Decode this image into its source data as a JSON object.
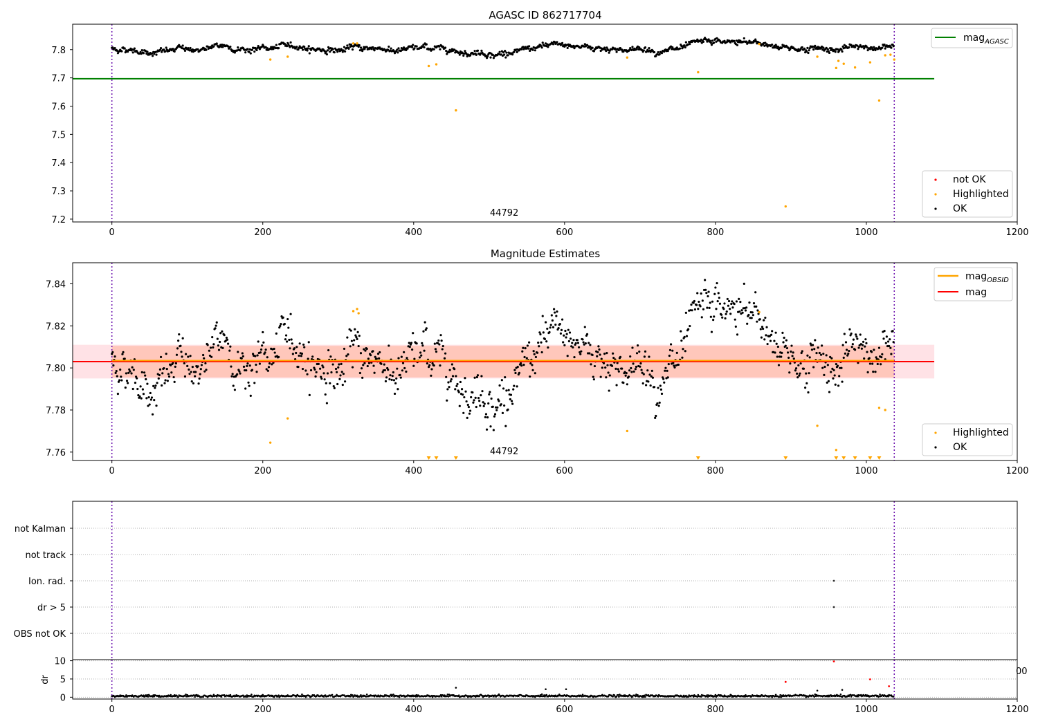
{
  "chart_data": [
    {
      "type": "scatter",
      "title": "AGASC ID 862717704",
      "xlim": [
        -52,
        1200
      ],
      "ylim": [
        7.19,
        7.89
      ],
      "x_ticks": [
        "0",
        "200",
        "400",
        "600",
        "800",
        "1000",
        "1200"
      ],
      "y_ticks": [
        7.2,
        7.3,
        7.4,
        7.5,
        7.6,
        7.7,
        7.8
      ],
      "vlines": [
        0,
        1037
      ],
      "obsid_label": {
        "text": "44792",
        "x": 520
      },
      "hline": {
        "name": "mag_AGASC",
        "value": 7.697,
        "x_range": [
          -52,
          1090
        ],
        "color": "#008000"
      },
      "legend_top": [
        {
          "label_main": "mag",
          "label_sub": "AGASC",
          "color": "#008000"
        }
      ],
      "legend_bottom": [
        {
          "label": "not OK",
          "color": "#ff0000"
        },
        {
          "label": "Highlighted",
          "color": "#ffa500"
        },
        {
          "label": "OK",
          "color": "#000000"
        }
      ],
      "highlighted": {
        "x": [
          210,
          233,
          320,
          325,
          420,
          430,
          456,
          683,
          777,
          858,
          893,
          935,
          960,
          963,
          970,
          985,
          1005,
          1017,
          1025,
          1032,
          1037
        ],
        "y": [
          7.765,
          7.775,
          7.822,
          7.822,
          7.742,
          7.748,
          7.585,
          7.772,
          7.72,
          7.82,
          7.245,
          7.775,
          7.735,
          7.76,
          7.75,
          7.737,
          7.755,
          7.62,
          7.78,
          7.782,
          7.765
        ]
      },
      "ok_series": {
        "n": 1037,
        "mean": 7.803
      }
    },
    {
      "type": "scatter",
      "title": "Magnitude Estimates",
      "xlim": [
        -52,
        1200
      ],
      "ylim": [
        7.756,
        7.85
      ],
      "x_ticks": [
        "0",
        "200",
        "400",
        "600",
        "800",
        "1000",
        "1200"
      ],
      "y_ticks": [
        7.76,
        7.78,
        7.8,
        7.82,
        7.84
      ],
      "vlines": [
        0,
        1037
      ],
      "obsid_label": {
        "text": "44792",
        "x": 520
      },
      "mag_line": {
        "name": "mag",
        "value": 7.803,
        "color": "#ff0000",
        "x_range": [
          -52,
          1090
        ]
      },
      "mag_obsid_line": {
        "name": "mag_OBSID",
        "value": 7.8035,
        "color": "#ffa500",
        "x_range": [
          0,
          1037
        ]
      },
      "bands": [
        {
          "y": [
            7.795,
            7.811
          ],
          "x_range": [
            -52,
            1090
          ],
          "color": "#ffb6c1"
        },
        {
          "y": [
            7.7955,
            7.8105
          ],
          "x_range": [
            0,
            1037
          ],
          "color": "#ffa07a"
        }
      ],
      "legend_top": [
        {
          "label_main": "mag",
          "label_sub": "OBSID",
          "color": "#ffa500"
        },
        {
          "label_main": "mag",
          "label_sub": "",
          "color": "#ff0000"
        }
      ],
      "legend_bottom": [
        {
          "label": "Highlighted",
          "color": "#ffa500"
        },
        {
          "label": "OK",
          "color": "#000000"
        }
      ],
      "highlighted": {
        "x": [
          210,
          233,
          320,
          325,
          327,
          683,
          858,
          935,
          960,
          1017,
          1025
        ],
        "y": [
          7.7645,
          7.776,
          7.827,
          7.828,
          7.826,
          7.77,
          7.8265,
          7.7725,
          7.761,
          7.781,
          7.78
        ]
      },
      "below_range_markers": [
        420,
        430,
        456,
        777,
        893,
        960,
        970,
        985,
        1005,
        1017
      ]
    },
    {
      "type": "scatter",
      "title": "",
      "xlim": [
        -52,
        1200
      ],
      "categories": [
        "OBS not OK",
        "dr > 5",
        "Ion. rad.",
        "not track",
        "not Kalman"
      ],
      "vlines": [
        0,
        1037
      ],
      "flags": [
        {
          "category": "Ion. rad.",
          "x": 957
        },
        {
          "category": "dr > 5",
          "x": 957
        }
      ]
    },
    {
      "type": "scatter",
      "title": "",
      "xlim": [
        -52,
        1200
      ],
      "ylim": [
        -0.5,
        10.3
      ],
      "ylabel": "dr",
      "x_ticks": [
        "0",
        "200",
        "400",
        "600",
        "800",
        "1000",
        "1200"
      ],
      "y_ticks": [
        0,
        5,
        10
      ],
      "stray_tick_label": "00",
      "vlines": [
        0,
        1037
      ],
      "spikes_ok": {
        "x": [
          456,
          575,
          602,
          935,
          968
        ],
        "y": [
          2.6,
          2.2,
          2.2,
          1.8,
          2.0
        ]
      },
      "red_points": {
        "x": [
          893,
          957,
          1005,
          1030
        ],
        "y": [
          4.2,
          9.8,
          4.9,
          3.0
        ]
      }
    }
  ]
}
